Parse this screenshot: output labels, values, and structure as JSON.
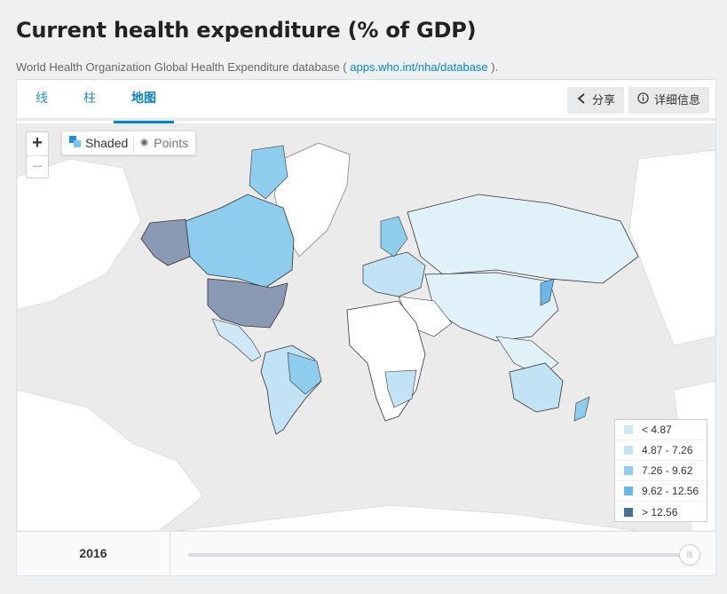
{
  "page": {
    "title": "Current health expenditure (% of GDP)",
    "source_prefix": "World Health Organization Global Health Expenditure database ( ",
    "source_link": "apps.who.int/nha/database",
    "source_suffix": " )."
  },
  "tabs": [
    {
      "label": "线",
      "active": false
    },
    {
      "label": "柱",
      "active": false
    },
    {
      "label": "地图",
      "active": true
    }
  ],
  "actions": {
    "share_label": "分享",
    "details_label": "详细信息"
  },
  "map_controls": {
    "zoom_in": "+",
    "zoom_out": "−",
    "shaded_label": "Shaded",
    "points_label": "Points"
  },
  "legend": {
    "items": [
      {
        "label": "< 4.87",
        "color": "#cfe8f7"
      },
      {
        "label": "4.87 - 7.26",
        "color": "#c2e3f5"
      },
      {
        "label": "7.26 - 9.62",
        "color": "#8fcdee"
      },
      {
        "label": "9.62 - 12.56",
        "color": "#6ab8ea"
      },
      {
        "label": "> 12.56",
        "color": "#4a6f97"
      }
    ]
  },
  "timeline": {
    "year": "2016",
    "slider_position": 1.0
  }
}
